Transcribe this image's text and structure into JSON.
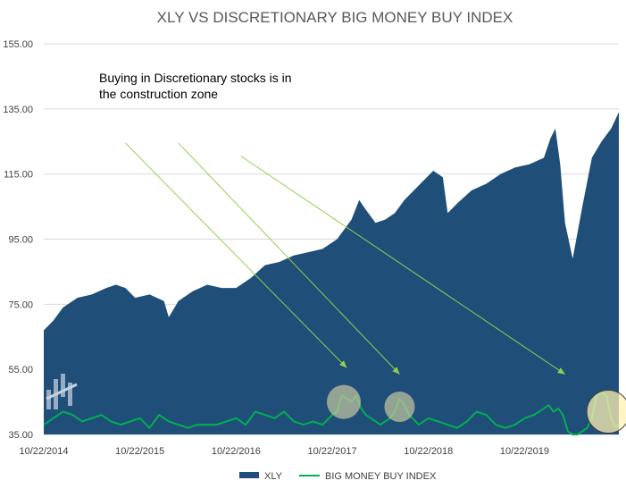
{
  "chart_data": {
    "type": "area",
    "title": "XLY VS DISCRETIONARY BIG MONEY BUY INDEX",
    "annotation": [
      "Buying in Discretionary stocks is in",
      "the construction zone"
    ],
    "ylim": [
      35,
      155
    ],
    "y_ticks": [
      "155.00",
      "135.00",
      "115.00",
      "95.00",
      "75.00",
      "55.00",
      "35.00"
    ],
    "x_tick_labels": [
      "10/22/2014",
      "10/22/2015",
      "10/22/2016",
      "10/22/2017",
      "10/22/2018",
      "10/22/2019"
    ],
    "grid": true,
    "legend_position": "bottom",
    "colors": {
      "xly": "#1f4e79",
      "bmbi": "#00b050",
      "arrow": "#92d050",
      "highlight": "#c8c8a0"
    },
    "series": [
      {
        "name": "XLY",
        "type": "area",
        "x": [
          2014.8,
          2014.9,
          2015.0,
          2015.15,
          2015.3,
          2015.45,
          2015.55,
          2015.65,
          2015.75,
          2015.9,
          2016.05,
          2016.1,
          2016.2,
          2016.35,
          2016.5,
          2016.65,
          2016.8,
          2016.95,
          2017.1,
          2017.25,
          2017.4,
          2017.55,
          2017.7,
          2017.85,
          2018.0,
          2018.08,
          2018.15,
          2018.25,
          2018.35,
          2018.45,
          2018.55,
          2018.65,
          2018.75,
          2018.85,
          2018.95,
          2019.0,
          2019.1,
          2019.25,
          2019.4,
          2019.55,
          2019.7,
          2019.85,
          2020.0,
          2020.07,
          2020.12,
          2020.17,
          2020.22,
          2020.3,
          2020.4,
          2020.5,
          2020.6,
          2020.7,
          2020.78
        ],
        "values": [
          67,
          70,
          74,
          77,
          78,
          80,
          81,
          80,
          77,
          78,
          76,
          71,
          76,
          79,
          81,
          80,
          80,
          83,
          87,
          88,
          90,
          91,
          92,
          95,
          101,
          107,
          104,
          100,
          101,
          103,
          107,
          110,
          113,
          116,
          114,
          103,
          106,
          110,
          112,
          115,
          117,
          118,
          120,
          126,
          129,
          118,
          100,
          89,
          105,
          120,
          125,
          129,
          134
        ]
      },
      {
        "name": "BIG MONEY BUY INDEX",
        "type": "line",
        "x": [
          2014.8,
          2014.9,
          2015.0,
          2015.1,
          2015.2,
          2015.3,
          2015.4,
          2015.5,
          2015.6,
          2015.7,
          2015.8,
          2015.9,
          2016.0,
          2016.1,
          2016.2,
          2016.3,
          2016.4,
          2016.5,
          2016.6,
          2016.7,
          2016.8,
          2016.9,
          2017.0,
          2017.1,
          2017.2,
          2017.3,
          2017.4,
          2017.5,
          2017.6,
          2017.7,
          2017.8,
          2017.85,
          2017.9,
          2017.95,
          2018.0,
          2018.05,
          2018.1,
          2018.15,
          2018.2,
          2018.3,
          2018.4,
          2018.45,
          2018.5,
          2018.55,
          2018.6,
          2018.7,
          2018.8,
          2018.9,
          2019.0,
          2019.1,
          2019.2,
          2019.3,
          2019.4,
          2019.5,
          2019.6,
          2019.7,
          2019.8,
          2019.9,
          2020.0,
          2020.05,
          2020.1,
          2020.15,
          2020.2,
          2020.25,
          2020.3,
          2020.35,
          2020.4,
          2020.45,
          2020.5,
          2020.55,
          2020.6,
          2020.65,
          2020.7,
          2020.75,
          2020.78
        ],
        "values": [
          38,
          40,
          42,
          41,
          39,
          40,
          41,
          39,
          38,
          39,
          40,
          37,
          41,
          39,
          38,
          37,
          38,
          38,
          38,
          39,
          40,
          38,
          42,
          41,
          40,
          42,
          39,
          38,
          39,
          38,
          41,
          42,
          47,
          46,
          45,
          47,
          43,
          41,
          40,
          38,
          40,
          42,
          46,
          44,
          41,
          38,
          40,
          39,
          38,
          37,
          39,
          42,
          41,
          38,
          37,
          38,
          40,
          41,
          43,
          44,
          42,
          43,
          41,
          36,
          35,
          35,
          36,
          37,
          40,
          47,
          48,
          47,
          40,
          37,
          38
        ]
      }
    ],
    "highlights": [
      {
        "x": 2017.92,
        "y": 45
      },
      {
        "x": 2018.5,
        "y": 43.5
      },
      {
        "x": 2020.67,
        "y": 42
      }
    ],
    "arrows": [
      {
        "from": [
          2015.65,
          124.5
        ],
        "to": [
          2017.95,
          55.5
        ]
      },
      {
        "from": [
          2016.2,
          124.5
        ],
        "to": [
          2018.5,
          53.5
        ]
      },
      {
        "from": [
          2016.85,
          120.5
        ],
        "to": [
          2020.22,
          53.5
        ]
      }
    ],
    "legend": [
      {
        "label": "XLY",
        "kind": "area"
      },
      {
        "label": "BIG MONEY BUY INDEX",
        "kind": "line"
      }
    ]
  }
}
